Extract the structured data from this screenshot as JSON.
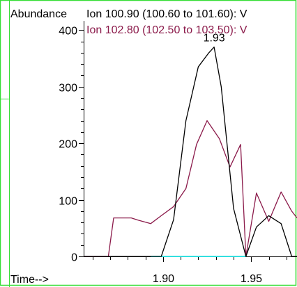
{
  "chart_data": {
    "type": "line",
    "ylabel": "Abundance",
    "xlabel": "Time-->",
    "xlim": [
      1.855,
      1.976
    ],
    "ylim": [
      0,
      420
    ],
    "yticks": [
      0,
      100,
      200,
      300,
      400
    ],
    "xticks": [
      1.9,
      1.95
    ],
    "ytick_labels": [
      "0",
      "100",
      "200",
      "300",
      "400"
    ],
    "xtick_labels": [
      "1.90",
      "1.95"
    ],
    "peak_annotation": {
      "label": "1.93",
      "x": 1.929,
      "y": 370
    },
    "colors": {
      "frame": "#33dd33",
      "axis": "#000000",
      "baseline": "#33e0e0"
    },
    "baseline_segment": {
      "x": [
        1.893,
        1.947
      ],
      "y": 0
    },
    "series": [
      {
        "name": "Ion 100.90 (100.60 to 101.60): V",
        "color": "#000000",
        "x": [
          1.855,
          1.893,
          1.899,
          1.906,
          1.913,
          1.92,
          1.926,
          1.929,
          1.933,
          1.94,
          1.947,
          1.953,
          1.96,
          1.967,
          1.973,
          1.976
        ],
        "y": [
          0,
          0,
          0,
          65,
          240,
          335,
          360,
          370,
          300,
          85,
          0,
          52,
          72,
          58,
          0,
          0
        ]
      },
      {
        "name": "Ion 102.80 (102.50 to 103.50): V",
        "color": "#8b1a4a",
        "x": [
          1.855,
          1.869,
          1.872,
          1.876,
          1.882,
          1.886,
          1.893,
          1.899,
          1.906,
          1.913,
          1.919,
          1.925,
          1.932,
          1.938,
          1.944,
          1.947,
          1.953,
          1.96,
          1.967,
          1.973,
          1.976
        ],
        "y": [
          0,
          0,
          68,
          68,
          68,
          64,
          58,
          72,
          88,
          120,
          198,
          240,
          208,
          158,
          198,
          0,
          112,
          62,
          114,
          80,
          68
        ]
      }
    ]
  }
}
